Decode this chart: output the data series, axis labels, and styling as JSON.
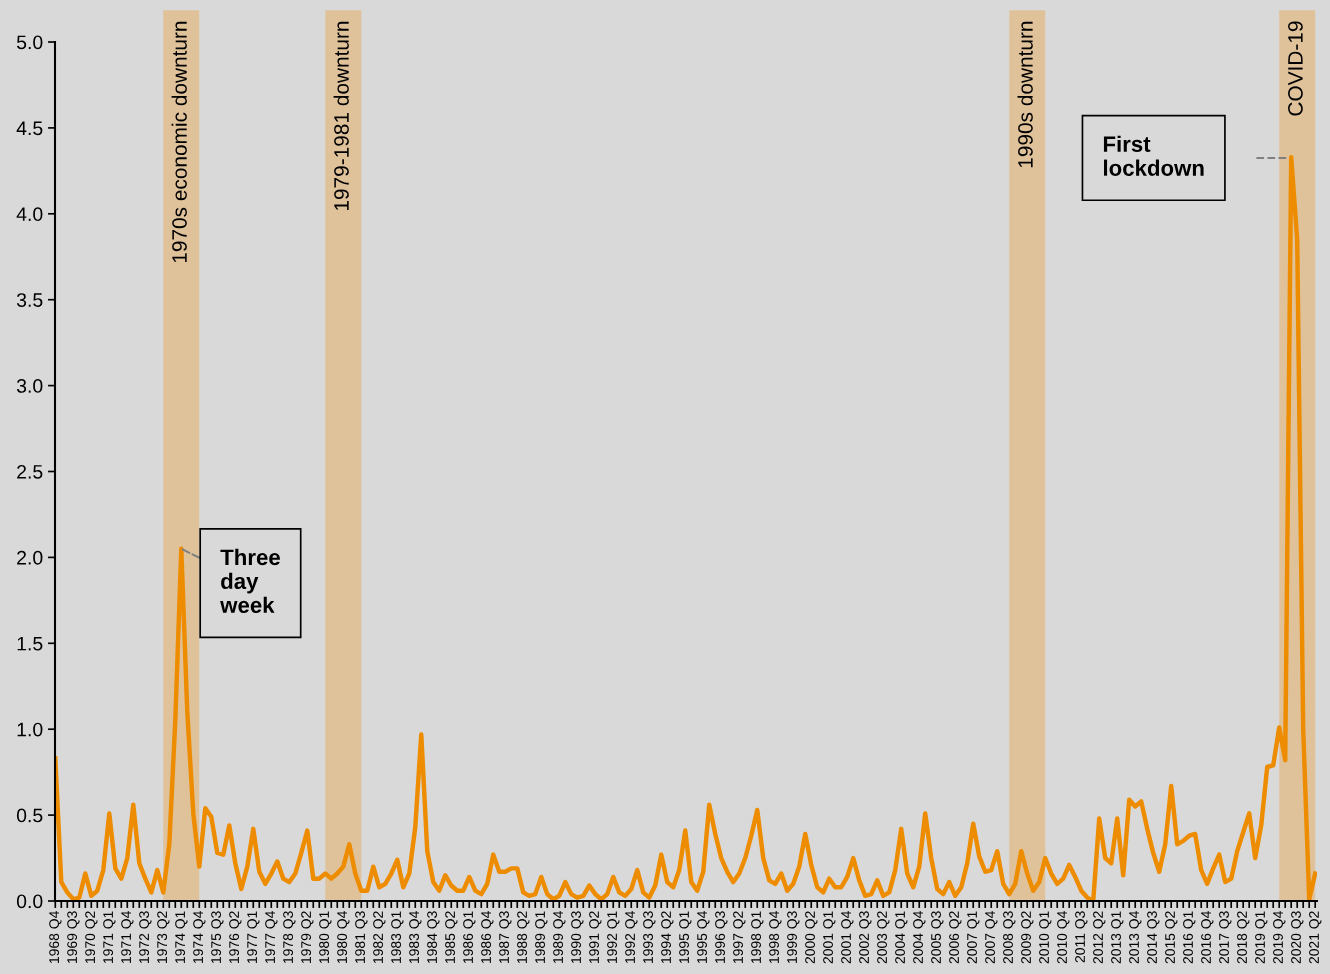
{
  "chart_data": {
    "type": "line",
    "categories": [
      "1968 Q4",
      null,
      null,
      "1969 Q3",
      null,
      null,
      "1970 Q2",
      null,
      null,
      "1971 Q1",
      null,
      null,
      "1971 Q4",
      null,
      null,
      "1972 Q3",
      null,
      null,
      "1973 Q2",
      null,
      null,
      "1974 Q1",
      null,
      null,
      "1974 Q4",
      null,
      null,
      "1975 Q3",
      null,
      null,
      "1976 Q2",
      null,
      null,
      "1977 Q1",
      null,
      null,
      "1977 Q4",
      null,
      null,
      "1978 Q3",
      null,
      null,
      "1979 Q2",
      null,
      null,
      "1980 Q1",
      null,
      null,
      "1980 Q4",
      null,
      null,
      "1981 Q3",
      null,
      null,
      "1982 Q2",
      null,
      null,
      "1983 Q1",
      null,
      null,
      "1983 Q4",
      null,
      null,
      "1984 Q3",
      null,
      null,
      "1985 Q2",
      null,
      null,
      "1986 Q1",
      null,
      null,
      "1986 Q4",
      null,
      null,
      "1987 Q3",
      null,
      null,
      "1988 Q2",
      null,
      null,
      "1989 Q1",
      null,
      null,
      "1989 Q4",
      null,
      null,
      "1990 Q3",
      null,
      null,
      "1991 Q2",
      null,
      null,
      "1992 Q1",
      null,
      null,
      "1992 Q4",
      null,
      null,
      "1993 Q3",
      null,
      null,
      "1994 Q2",
      null,
      null,
      "1995 Q1",
      null,
      null,
      "1995 Q4",
      null,
      null,
      "1996 Q3",
      null,
      null,
      "1997 Q2",
      null,
      null,
      "1998 Q1",
      null,
      null,
      "1998 Q4",
      null,
      null,
      "1999 Q3",
      null,
      null,
      "2000 Q2",
      null,
      null,
      "2001 Q1",
      null,
      null,
      "2001 Q4",
      null,
      null,
      "2002 Q3",
      null,
      null,
      "2003 Q2",
      null,
      null,
      "2004 Q1",
      null,
      null,
      "2004 Q4",
      null,
      null,
      "2005 Q3",
      null,
      null,
      "2006 Q2",
      null,
      null,
      "2007 Q1",
      null,
      null,
      "2007 Q4",
      null,
      null,
      "2008 Q3",
      null,
      null,
      "2009 Q2",
      null,
      null,
      "2010 Q1",
      null,
      null,
      "2010 Q4",
      null,
      null,
      "2011 Q3",
      null,
      null,
      "2012 Q2",
      null,
      null,
      "2013 Q1",
      null,
      null,
      "2013 Q4",
      null,
      null,
      "2014 Q3",
      null,
      null,
      "2015 Q2",
      null,
      null,
      "2016 Q1",
      null,
      null,
      "2016 Q4",
      null,
      null,
      "2017 Q3",
      null,
      null,
      "2018 Q2",
      null,
      null,
      "2019 Q1",
      null,
      null,
      "2019 Q4",
      null,
      null,
      "2020 Q3",
      null,
      null,
      "2021 Q2"
    ],
    "series": [
      {
        "color": "#ee8c00",
        "values": [
          0.83,
          0.11,
          0.05,
          0.01,
          0.02,
          0.16,
          0.03,
          0.06,
          0.18,
          0.51,
          0.19,
          0.13,
          0.25,
          0.56,
          0.22,
          0.13,
          0.05,
          0.18,
          0.05,
          0.33,
          1.05,
          2.05,
          1.1,
          0.51,
          0.2,
          0.54,
          0.49,
          0.28,
          0.27,
          0.44,
          0.22,
          0.07,
          0.2,
          0.42,
          0.17,
          0.1,
          0.16,
          0.23,
          0.13,
          0.11,
          0.16,
          0.28,
          0.41,
          0.13,
          0.13,
          0.16,
          0.13,
          0.16,
          0.2,
          0.33,
          0.16,
          0.06,
          0.06,
          0.2,
          0.08,
          0.1,
          0.16,
          0.24,
          0.08,
          0.16,
          0.43,
          0.97,
          0.29,
          0.11,
          0.06,
          0.15,
          0.09,
          0.06,
          0.06,
          0.14,
          0.06,
          0.04,
          0.1,
          0.27,
          0.17,
          0.17,
          0.19,
          0.19,
          0.05,
          0.03,
          0.04,
          0.14,
          0.04,
          0.01,
          0.03,
          0.11,
          0.04,
          0.02,
          0.03,
          0.09,
          0.04,
          0.01,
          0.04,
          0.14,
          0.05,
          0.03,
          0.07,
          0.18,
          0.05,
          0.02,
          0.09,
          0.27,
          0.11,
          0.08,
          0.18,
          0.41,
          0.11,
          0.06,
          0.17,
          0.56,
          0.39,
          0.25,
          0.17,
          0.11,
          0.16,
          0.25,
          0.38,
          0.53,
          0.25,
          0.12,
          0.1,
          0.16,
          0.06,
          0.1,
          0.2,
          0.39,
          0.21,
          0.08,
          0.05,
          0.13,
          0.08,
          0.08,
          0.14,
          0.25,
          0.12,
          0.03,
          0.04,
          0.12,
          0.03,
          0.05,
          0.18,
          0.42,
          0.16,
          0.08,
          0.2,
          0.51,
          0.25,
          0.07,
          0.04,
          0.11,
          0.03,
          0.08,
          0.22,
          0.45,
          0.26,
          0.17,
          0.18,
          0.29,
          0.1,
          0.04,
          0.1,
          0.29,
          0.16,
          0.06,
          0.11,
          0.25,
          0.16,
          0.1,
          0.13,
          0.21,
          0.14,
          0.06,
          0.02,
          0.0,
          0.48,
          0.25,
          0.22,
          0.48,
          0.15,
          0.59,
          0.55,
          0.58,
          0.42,
          0.28,
          0.17,
          0.33,
          0.67,
          0.33,
          0.35,
          0.38,
          0.39,
          0.18,
          0.1,
          0.19,
          0.27,
          0.11,
          0.13,
          0.29,
          0.4,
          0.51,
          0.25,
          0.44,
          0.78,
          0.79,
          1.01,
          0.82,
          4.33,
          3.85,
          1.0,
          0.01,
          0.16
        ]
      }
    ],
    "ylim": [
      0.0,
      5.0
    ],
    "yticks": [
      {
        "value": 0,
        "label": "0.0"
      },
      0.5,
      {
        "value": 1,
        "label": "1.0"
      },
      1.5,
      {
        "value": 2,
        "label": "2.0"
      },
      2.5,
      {
        "value": 3,
        "label": "3.0"
      },
      3.5,
      {
        "value": 4,
        "label": "4.0"
      },
      4.5,
      {
        "value": 5,
        "label": "5.0"
      }
    ],
    "bands": [
      {
        "axis": "x",
        "from": "1973 Q2",
        "to": "1974 Q4",
        "label": "1970s economic downturn",
        "color": "#e0c29a"
      },
      {
        "axis": "x",
        "from": "1980 Q1",
        "to": "1981 Q3",
        "label": "1979-1981 downturn",
        "color": "#e0c29a"
      },
      {
        "axis": "x",
        "from": "2008 Q3",
        "to": "2010 Q1",
        "label": "1990s downturn",
        "color": "#e0c29a"
      },
      {
        "axis": "x",
        "from": "2019 Q4",
        "to": "2021 Q2",
        "label": "COVID-19",
        "color": "#e0c29a"
      }
    ],
    "annotations": [
      {
        "text": "Three\nday\nweek",
        "x": "1974 Q1",
        "y": 2.05
      },
      "First\nlockdown"
    ],
    "grid": false,
    "legend": false
  }
}
